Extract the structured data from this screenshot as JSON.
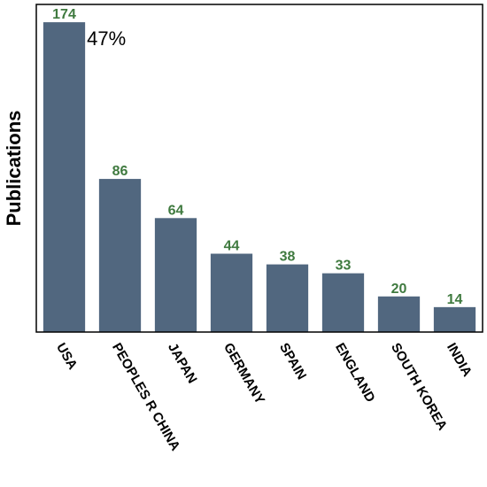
{
  "chart_data": {
    "type": "bar",
    "categories": [
      "USA",
      "PEOPLES R CHINA",
      "JAPAN",
      "GERMANY",
      "SPAIN",
      "ENGLAND",
      "SOUTH KOREA",
      "INDIA"
    ],
    "values": [
      174,
      86,
      64,
      44,
      38,
      33,
      20,
      14
    ],
    "title": "",
    "xlabel": "",
    "ylabel": "Publications",
    "ylim": [
      0,
      184
    ],
    "grid": false,
    "legend": "none",
    "annotations": [
      {
        "text": "47%",
        "category": "USA"
      }
    ],
    "colors": {
      "bar": "#51677F",
      "value_label": "#3F7A3F",
      "axis": "#000000"
    }
  }
}
